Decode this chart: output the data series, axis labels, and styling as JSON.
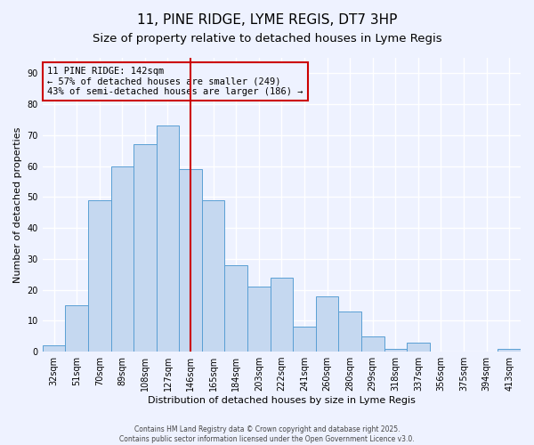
{
  "title": "11, PINE RIDGE, LYME REGIS, DT7 3HP",
  "subtitle": "Size of property relative to detached houses in Lyme Regis",
  "xlabel": "Distribution of detached houses by size in Lyme Regis",
  "ylabel": "Number of detached properties",
  "bins": [
    "32sqm",
    "51sqm",
    "70sqm",
    "89sqm",
    "108sqm",
    "127sqm",
    "146sqm",
    "165sqm",
    "184sqm",
    "203sqm",
    "222sqm",
    "241sqm",
    "260sqm",
    "280sqm",
    "299sqm",
    "318sqm",
    "337sqm",
    "356sqm",
    "375sqm",
    "394sqm",
    "413sqm"
  ],
  "values": [
    2,
    15,
    49,
    60,
    67,
    73,
    59,
    49,
    28,
    21,
    24,
    8,
    18,
    13,
    5,
    1,
    3,
    0,
    0,
    0,
    1
  ],
  "bar_color": "#c5d8f0",
  "bar_edge_color": "#5a9fd4",
  "ref_line_x": 6.0,
  "ref_line_color": "#cc0000",
  "annotation_title": "11 PINE RIDGE: 142sqm",
  "annotation_line1": "← 57% of detached houses are smaller (249)",
  "annotation_line2": "43% of semi-detached houses are larger (186) →",
  "ylim": [
    0,
    95
  ],
  "yticks": [
    0,
    10,
    20,
    30,
    40,
    50,
    60,
    70,
    80,
    90
  ],
  "footer1": "Contains HM Land Registry data © Crown copyright and database right 2025.",
  "footer2": "Contains public sector information licensed under the Open Government Licence v3.0.",
  "background_color": "#eef2ff",
  "grid_color": "#ffffff",
  "title_fontsize": 11,
  "subtitle_fontsize": 9.5,
  "axis_fontsize": 8,
  "tick_fontsize": 7,
  "annot_fontsize": 7.5
}
